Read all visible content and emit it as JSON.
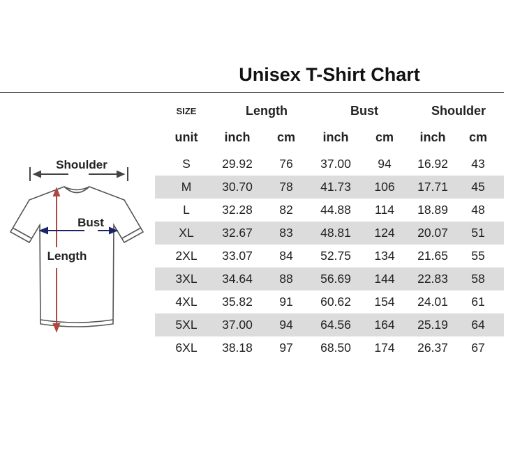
{
  "title": "Unisex T-Shirt Chart",
  "diagram": {
    "shoulder": "Shoulder",
    "bust": "Bust",
    "length": "Length"
  },
  "table": {
    "size_header": "SIZE",
    "groups": [
      "Length",
      "Bust",
      "Shoulder"
    ],
    "unit_label": "unit",
    "units": [
      "inch",
      "cm",
      "inch",
      "cm",
      "inch",
      "cm"
    ],
    "rows": [
      [
        "S",
        "29.92",
        "76",
        "37.00",
        "94",
        "16.92",
        "43"
      ],
      [
        "M",
        "30.70",
        "78",
        "41.73",
        "106",
        "17.71",
        "45"
      ],
      [
        "L",
        "32.28",
        "82",
        "44.88",
        "114",
        "18.89",
        "48"
      ],
      [
        "XL",
        "32.67",
        "83",
        "48.81",
        "124",
        "20.07",
        "51"
      ],
      [
        "2XL",
        "33.07",
        "84",
        "52.75",
        "134",
        "21.65",
        "55"
      ],
      [
        "3XL",
        "34.64",
        "88",
        "56.69",
        "144",
        "22.83",
        "58"
      ],
      [
        "4XL",
        "35.82",
        "91",
        "60.62",
        "154",
        "24.01",
        "61"
      ],
      [
        "5XL",
        "37.00",
        "94",
        "64.56",
        "164",
        "25.19",
        "64"
      ],
      [
        "6XL",
        "38.18",
        "97",
        "68.50",
        "174",
        "26.37",
        "67"
      ]
    ]
  },
  "colors": {
    "stripe": "#dcdcdc",
    "length_arrow": "#b0463f",
    "bust_arrow": "#1c2466"
  }
}
